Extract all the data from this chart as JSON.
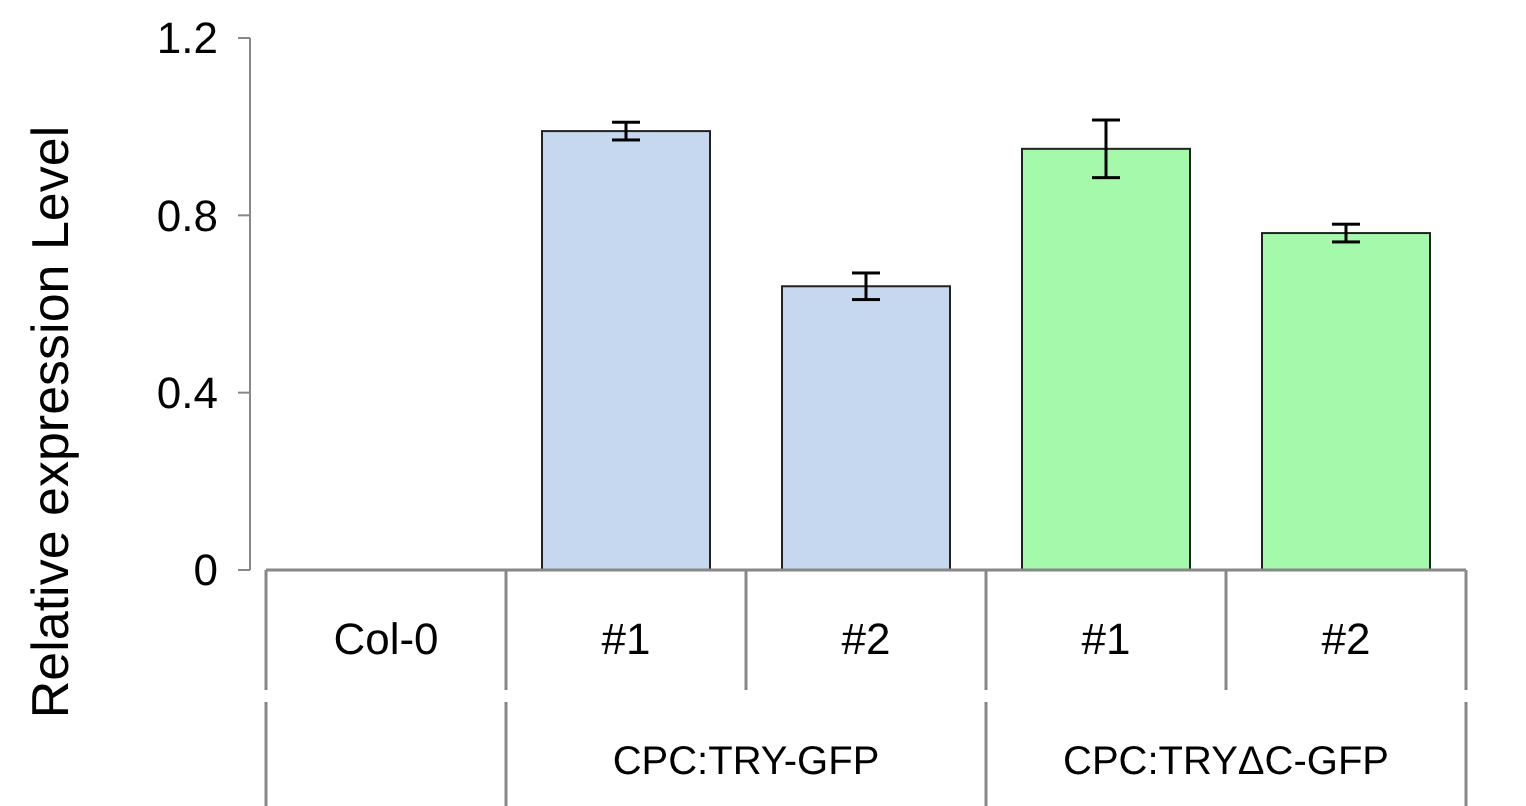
{
  "chart_data": {
    "type": "bar",
    "ylabel": "Relative expression Level",
    "categories": [
      "Col-0",
      "#1",
      "#2",
      "#1",
      "#2"
    ],
    "values": [
      0,
      0.99,
      0.64,
      0.95,
      0.76
    ],
    "errors": [
      null,
      0.02,
      0.03,
      0.065,
      0.02
    ],
    "colors": [
      "#c5d8ef",
      "#c5d8ef",
      "#c5d8ef",
      "#a4f9aa",
      "#a4f9aa"
    ],
    "ylim": [
      0,
      1.2
    ],
    "yticks": [
      0,
      0.4,
      0.8,
      1.2
    ],
    "grid": false,
    "annotations": [
      "CPC:TRY-GFP",
      "CPC:TRYΔC-GFP"
    ]
  }
}
